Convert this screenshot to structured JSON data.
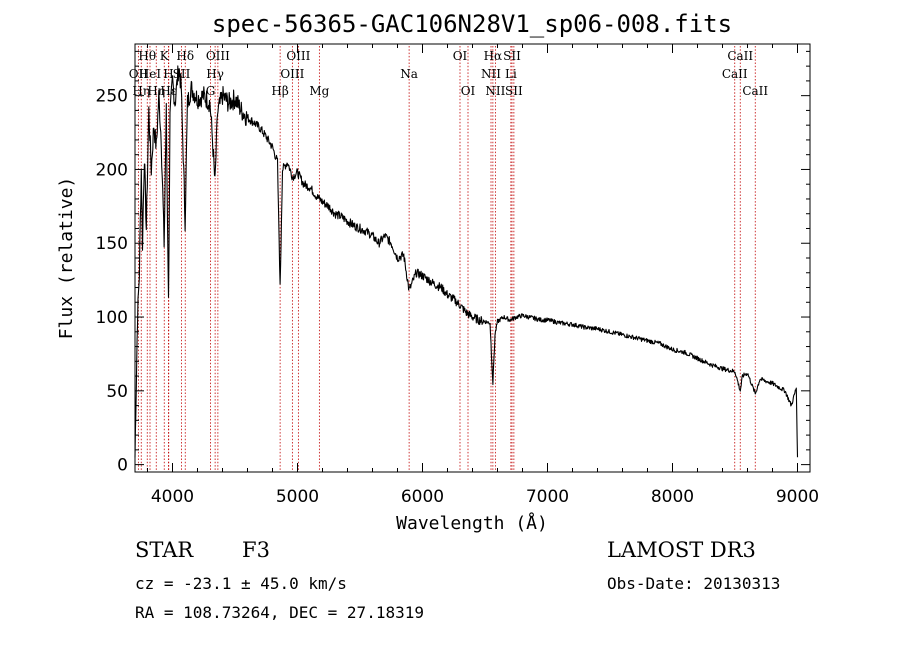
{
  "chart_data": {
    "type": "line",
    "title": "spec-56365-GAC106N28V1_sp06-008.fits",
    "xlabel": "Wavelength (Å)",
    "ylabel": "Flux (relative)",
    "xlim": [
      3700,
      9100
    ],
    "ylim": [
      -5,
      285
    ],
    "xticks": [
      4000,
      5000,
      6000,
      7000,
      8000,
      9000
    ],
    "yticks": [
      0,
      50,
      100,
      150,
      200,
      250
    ],
    "grid": false,
    "series": [
      {
        "name": "flux",
        "points": [
          [
            3700,
            5
          ],
          [
            3710,
            55
          ],
          [
            3720,
            100
          ],
          [
            3735,
            130
          ],
          [
            3750,
            200
          ],
          [
            3760,
            150
          ],
          [
            3775,
            210
          ],
          [
            3790,
            160
          ],
          [
            3810,
            240
          ],
          [
            3830,
            200
          ],
          [
            3850,
            230
          ],
          [
            3870,
            215
          ],
          [
            3890,
            250
          ],
          [
            3910,
            220
          ],
          [
            3933,
            150
          ],
          [
            3950,
            240
          ],
          [
            3968,
            110
          ],
          [
            3980,
            235
          ],
          [
            4000,
            260
          ],
          [
            4020,
            245
          ],
          [
            4050,
            270
          ],
          [
            4070,
            255
          ],
          [
            4101,
            165
          ],
          [
            4120,
            245
          ],
          [
            4150,
            255
          ],
          [
            4200,
            248
          ],
          [
            4250,
            250
          ],
          [
            4300,
            245
          ],
          [
            4320,
            220
          ],
          [
            4340,
            190
          ],
          [
            4360,
            238
          ],
          [
            4400,
            250
          ],
          [
            4450,
            245
          ],
          [
            4500,
            248
          ],
          [
            4550,
            240
          ],
          [
            4600,
            235
          ],
          [
            4650,
            232
          ],
          [
            4700,
            228
          ],
          [
            4750,
            222
          ],
          [
            4800,
            215
          ],
          [
            4840,
            205
          ],
          [
            4861,
            120
          ],
          [
            4880,
            200
          ],
          [
            4920,
            205
          ],
          [
            4960,
            195
          ],
          [
            5000,
            198
          ],
          [
            5050,
            190
          ],
          [
            5100,
            188
          ],
          [
            5150,
            182
          ],
          [
            5200,
            178
          ],
          [
            5250,
            175
          ],
          [
            5300,
            170
          ],
          [
            5350,
            168
          ],
          [
            5400,
            165
          ],
          [
            5450,
            162
          ],
          [
            5500,
            160
          ],
          [
            5550,
            158
          ],
          [
            5600,
            155
          ],
          [
            5650,
            150
          ],
          [
            5700,
            155
          ],
          [
            5750,
            150
          ],
          [
            5800,
            140
          ],
          [
            5850,
            142
          ],
          [
            5893,
            118
          ],
          [
            5950,
            130
          ],
          [
            6000,
            128
          ],
          [
            6050,
            125
          ],
          [
            6100,
            122
          ],
          [
            6150,
            120
          ],
          [
            6200,
            115
          ],
          [
            6250,
            112
          ],
          [
            6300,
            108
          ],
          [
            6350,
            103
          ],
          [
            6400,
            100
          ],
          [
            6450,
            98
          ],
          [
            6500,
            97
          ],
          [
            6540,
            96
          ],
          [
            6563,
            55
          ],
          [
            6580,
            88
          ],
          [
            6600,
            97
          ],
          [
            6650,
            100
          ],
          [
            6700,
            98
          ],
          [
            6750,
            100
          ],
          [
            6800,
            101
          ],
          [
            6850,
            100
          ],
          [
            6900,
            99
          ],
          [
            6950,
            98
          ],
          [
            7000,
            98
          ],
          [
            7100,
            96
          ],
          [
            7200,
            95
          ],
          [
            7300,
            93
          ],
          [
            7400,
            92
          ],
          [
            7500,
            90
          ],
          [
            7600,
            88
          ],
          [
            7700,
            86
          ],
          [
            7800,
            84
          ],
          [
            7900,
            82
          ],
          [
            8000,
            78
          ],
          [
            8100,
            76
          ],
          [
            8200,
            72
          ],
          [
            8300,
            68
          ],
          [
            8400,
            65
          ],
          [
            8500,
            63
          ],
          [
            8542,
            50
          ],
          [
            8560,
            60
          ],
          [
            8600,
            62
          ],
          [
            8662,
            48
          ],
          [
            8700,
            58
          ],
          [
            8800,
            55
          ],
          [
            8900,
            50
          ],
          [
            8950,
            40
          ],
          [
            8990,
            52
          ],
          [
            9000,
            5
          ]
        ]
      }
    ],
    "spectral_lines": [
      {
        "wl": 3727,
        "label": "OII",
        "row": 1
      },
      {
        "wl": 3750,
        "label": "Hη",
        "row": 2
      },
      {
        "wl": 3798,
        "label": "Hθ",
        "row": 0
      },
      {
        "wl": 3820,
        "label": "HeI",
        "row": 1
      },
      {
        "wl": 3870,
        "label": "Hη",
        "row": 2
      },
      {
        "wl": 3934,
        "label": "K",
        "row": 0
      },
      {
        "wl": 3968,
        "label": "H",
        "row": 1
      },
      {
        "wl": 3970,
        "label": "Hε",
        "row": 2
      },
      {
        "wl": 4072,
        "label": "SII",
        "row": 1
      },
      {
        "wl": 4102,
        "label": "Hδ",
        "row": 0
      },
      {
        "wl": 4304,
        "label": "G",
        "row": 2
      },
      {
        "wl": 4341,
        "label": "Hγ",
        "row": 1
      },
      {
        "wl": 4363,
        "label": "OIII",
        "row": 0
      },
      {
        "wl": 4861,
        "label": "Hβ",
        "row": 2
      },
      {
        "wl": 4959,
        "label": "OIII",
        "row": 1
      },
      {
        "wl": 5007,
        "label": "OIII",
        "row": 0
      },
      {
        "wl": 5175,
        "label": "Mg",
        "row": 2
      },
      {
        "wl": 5893,
        "label": "Na",
        "row": 1
      },
      {
        "wl": 6300,
        "label": "OI",
        "row": 0
      },
      {
        "wl": 6364,
        "label": "OI",
        "row": 2
      },
      {
        "wl": 6548,
        "label": "NII",
        "row": 1
      },
      {
        "wl": 6563,
        "label": "Hα",
        "row": 0
      },
      {
        "wl": 6583,
        "label": "NII",
        "row": 2
      },
      {
        "wl": 6707,
        "label": "Li",
        "row": 1
      },
      {
        "wl": 6716,
        "label": "SII",
        "row": 0
      },
      {
        "wl": 6731,
        "label": "SII",
        "row": 2
      },
      {
        "wl": 8498,
        "label": "CaII",
        "row": 1
      },
      {
        "wl": 8542,
        "label": "CaII",
        "row": 0
      },
      {
        "wl": 8662,
        "label": "CaII",
        "row": 2
      }
    ]
  },
  "info": {
    "object_class": "STAR",
    "subclass": "F3",
    "redshift": "cz = -23.1 ± 45.0 km/s",
    "coordinates": "RA = 108.73264, DEC =  27.18319",
    "survey": "LAMOST DR3",
    "obs_date": "Obs-Date: 20130313"
  },
  "colors": {
    "spectrum": "#000000",
    "line_markers": "#c00000",
    "axes": "#000000",
    "background": "#ffffff"
  }
}
